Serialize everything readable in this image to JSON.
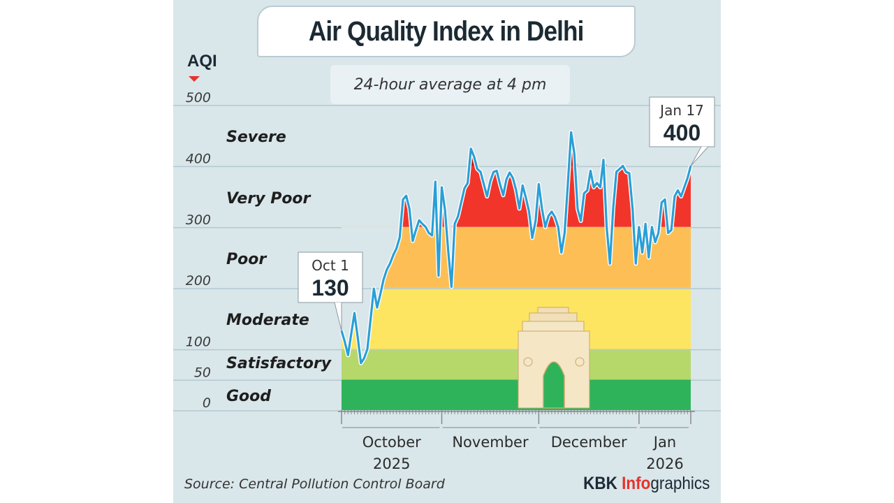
{
  "header": {
    "title": "Air Quality Index in Delhi",
    "subtitle": "24-hour average at 4 pm",
    "y_axis_title": "AQI"
  },
  "footer": {
    "source": "Source: Central Pollution Control Board",
    "credit_prefix": "KBK ",
    "credit_highlight": "Info",
    "credit_suffix": "graphics"
  },
  "colors": {
    "background": "#d9e6ea",
    "line": "#2a9fd6",
    "good": "#2fb35a",
    "satisfactory": "#b6d86b",
    "moderate": "#fde562",
    "poor": "#fdbf55",
    "very_poor": "#f2352a",
    "severe": "#8b0000",
    "accent_red": "#e8322b"
  },
  "chart_data": {
    "type": "area",
    "title": "Air Quality Index in Delhi",
    "subtitle": "24-hour average at 4 pm",
    "ylabel": "AQI",
    "xlabel": "",
    "ylim": [
      0,
      500
    ],
    "yticks": [
      0,
      50,
      100,
      200,
      300,
      400,
      500
    ],
    "ytick_labels": [
      "0",
      "50",
      "100",
      "200",
      "300",
      "400",
      "500"
    ],
    "grid": true,
    "categories_bands": [
      {
        "name": "Good",
        "from": 0,
        "to": 50
      },
      {
        "name": "Satisfactory",
        "from": 50,
        "to": 100
      },
      {
        "name": "Moderate",
        "from": 100,
        "to": 200
      },
      {
        "name": "Poor",
        "from": 200,
        "to": 300
      },
      {
        "name": "Very Poor",
        "from": 300,
        "to": 400
      },
      {
        "name": "Severe",
        "from": 400,
        "to": 500
      }
    ],
    "x_start": "2025-10-01",
    "x_end": "2026-01-17",
    "months": [
      {
        "label": "October",
        "year": "2025",
        "start_day": 0,
        "end_day": 31
      },
      {
        "label": "November",
        "year": "",
        "start_day": 31,
        "end_day": 61
      },
      {
        "label": "December",
        "year": "",
        "start_day": 61,
        "end_day": 92
      },
      {
        "label": "Jan",
        "year": "2026",
        "start_day": 92,
        "end_day": 108
      }
    ],
    "series": [
      {
        "name": "AQI",
        "values": [
          130,
          112,
          90,
          125,
          159,
          120,
          77,
          85,
          100,
          150,
          199,
          168,
          190,
          214,
          230,
          240,
          254,
          265,
          283,
          345,
          351,
          330,
          277,
          295,
          311,
          305,
          300,
          290,
          286,
          374,
          220,
          365,
          328,
          260,
          202,
          305,
          317,
          340,
          363,
          372,
          428,
          415,
          395,
          390,
          370,
          350,
          375,
          390,
          392,
          370,
          352,
          378,
          389,
          380,
          360,
          330,
          368,
          348,
          325,
          282,
          310,
          370,
          330,
          300,
          318,
          325,
          316,
          300,
          258,
          290,
          372,
          455,
          420,
          330,
          310,
          355,
          360,
          392,
          365,
          372,
          365,
          410,
          300,
          240,
          330,
          390,
          395,
          400,
          390,
          388,
          330,
          240,
          300,
          258,
          305,
          250,
          300,
          275,
          290,
          340,
          345,
          290,
          295,
          350,
          360,
          350,
          365,
          380,
          400
        ]
      }
    ],
    "annotations": [
      {
        "date": "Oct 1",
        "value": "130"
      },
      {
        "date": "Jan 17",
        "value": "400"
      }
    ]
  }
}
